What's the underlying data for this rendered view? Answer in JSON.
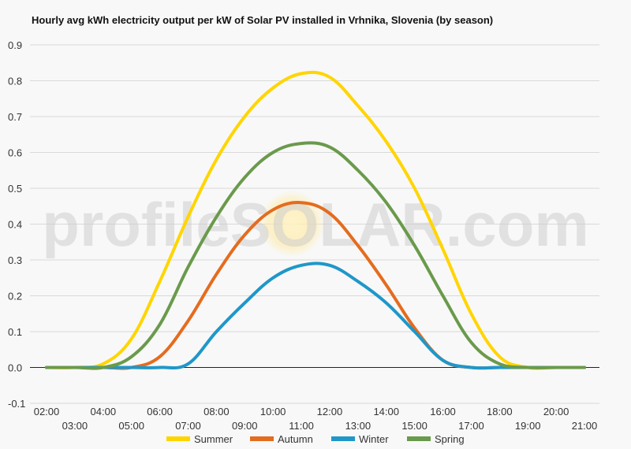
{
  "chart_data": {
    "type": "line",
    "title": "Hourly avg kWh electricity output per kW of Solar PV installed in Vrhnika, Slovenia (by season)",
    "xlabel": "",
    "ylabel": "",
    "ylim": [
      -0.1,
      0.9
    ],
    "yticks": [
      "-0.1",
      "0.0",
      "0.1",
      "0.2",
      "0.3",
      "0.4",
      "0.5",
      "0.6",
      "0.7",
      "0.8",
      "0.9"
    ],
    "x": [
      "02:00",
      "03:00",
      "04:00",
      "05:00",
      "06:00",
      "07:00",
      "08:00",
      "09:00",
      "10:00",
      "11:00",
      "12:00",
      "13:00",
      "14:00",
      "15:00",
      "16:00",
      "17:00",
      "18:00",
      "19:00",
      "20:00",
      "21:00"
    ],
    "grid": true,
    "legend": "bottom",
    "watermark": "profileSOLAR.com",
    "series": [
      {
        "name": "Summer",
        "color": "#ffd500",
        "values": [
          0,
          0,
          0.01,
          0.08,
          0.24,
          0.42,
          0.58,
          0.7,
          0.78,
          0.82,
          0.81,
          0.73,
          0.63,
          0.5,
          0.33,
          0.15,
          0.03,
          0,
          0,
          0
        ]
      },
      {
        "name": "Autumn",
        "color": "#e46c1f",
        "values": [
          0,
          0,
          0,
          0,
          0.03,
          0.13,
          0.26,
          0.37,
          0.44,
          0.46,
          0.43,
          0.34,
          0.23,
          0.11,
          0.02,
          0,
          0,
          0,
          0,
          0
        ]
      },
      {
        "name": "Winter",
        "color": "#1f97c9",
        "values": [
          0,
          0,
          0,
          0,
          0,
          0.01,
          0.1,
          0.18,
          0.25,
          0.285,
          0.285,
          0.24,
          0.18,
          0.1,
          0.02,
          0,
          0,
          0,
          0,
          0
        ]
      },
      {
        "name": "Spring",
        "color": "#6a9a4c",
        "values": [
          0,
          0,
          0,
          0.03,
          0.12,
          0.28,
          0.42,
          0.53,
          0.6,
          0.625,
          0.615,
          0.55,
          0.46,
          0.34,
          0.2,
          0.07,
          0.01,
          0,
          0,
          0
        ]
      }
    ]
  }
}
